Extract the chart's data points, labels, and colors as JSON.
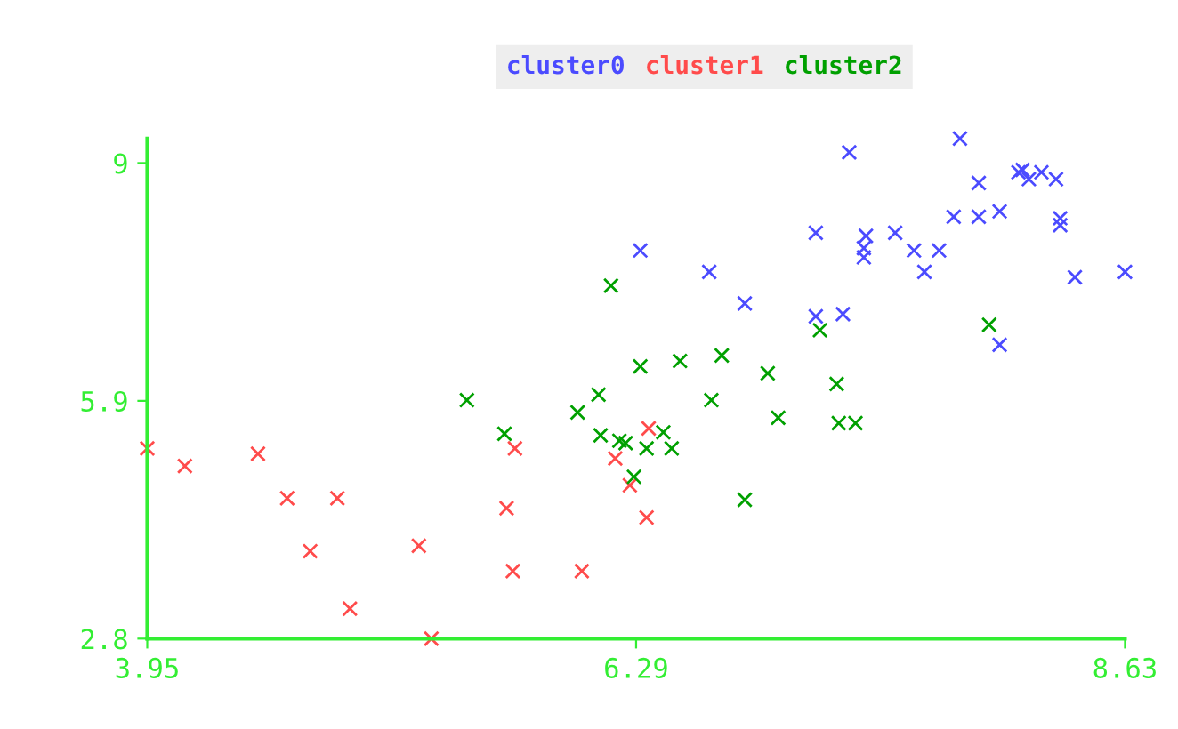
{
  "chart_data": {
    "type": "scatter",
    "marker": "cross",
    "legend": "top",
    "grid": false,
    "xlim": [
      3.95,
      8.63
    ],
    "ylim": [
      2.8,
      9.32
    ],
    "xticks": [
      3.95,
      6.29,
      8.63
    ],
    "yticks": [
      2.8,
      5.9,
      9
    ],
    "series": [
      {
        "name": "cluster0",
        "color": "#4b4bff",
        "x": [
          7.31,
          7.84,
          7.93,
          8.14,
          8.12,
          8.17,
          8.23,
          8.3,
          7.15,
          7.39,
          7.38,
          7.38,
          7.53,
          7.62,
          7.74,
          7.67,
          7.81,
          7.93,
          8.03,
          8.32,
          8.32,
          8.39,
          8.63,
          8.03,
          6.31,
          6.64,
          6.81,
          7.15,
          7.28
        ],
        "values": [
          9.14,
          9.32,
          8.74,
          8.91,
          8.88,
          8.79,
          8.88,
          8.79,
          8.09,
          8.05,
          7.89,
          7.77,
          8.09,
          7.86,
          7.86,
          7.58,
          8.3,
          8.3,
          8.37,
          8.28,
          8.19,
          7.51,
          7.58,
          6.63,
          7.86,
          7.58,
          7.17,
          7.0,
          7.03
        ]
      },
      {
        "name": "cluster1",
        "color": "#ff4b4b",
        "x": [
          3.95,
          4.13,
          4.48,
          4.62,
          4.86,
          4.73,
          5.25,
          4.92,
          5.31,
          5.67,
          5.71,
          5.7,
          6.03,
          6.19,
          6.26,
          6.35,
          6.34
        ],
        "values": [
          5.28,
          5.05,
          5.21,
          4.63,
          4.63,
          3.94,
          4.01,
          3.19,
          2.8,
          4.5,
          5.28,
          3.68,
          3.68,
          5.15,
          4.8,
          5.54,
          4.38
        ]
      },
      {
        "name": "cluster2",
        "color": "#00a000",
        "x": [
          6.17,
          5.48,
          5.66,
          6.11,
          6.01,
          6.31,
          6.5,
          6.7,
          6.92,
          6.65,
          6.12,
          6.21,
          6.24,
          6.34,
          6.42,
          6.46,
          6.28,
          6.81,
          6.97,
          7.25,
          7.26,
          7.34,
          7.17,
          7.98
        ],
        "values": [
          7.4,
          5.91,
          5.47,
          5.98,
          5.75,
          6.35,
          6.42,
          6.49,
          6.26,
          5.91,
          5.45,
          5.38,
          5.35,
          5.28,
          5.49,
          5.28,
          4.91,
          4.61,
          5.68,
          6.12,
          5.61,
          5.61,
          6.82,
          6.89
        ]
      }
    ]
  }
}
